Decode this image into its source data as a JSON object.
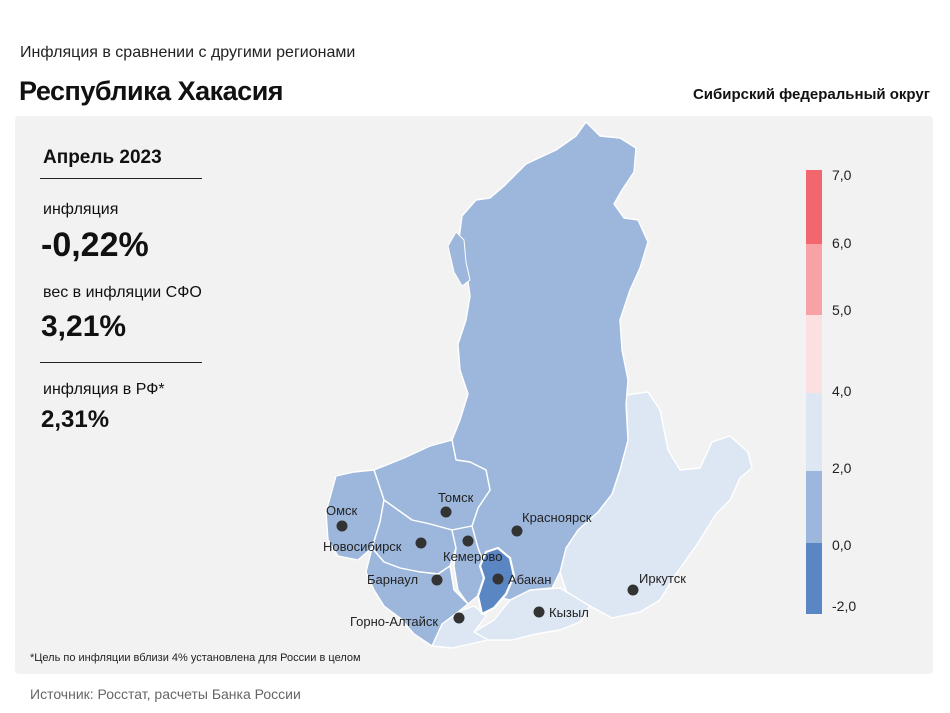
{
  "header": {
    "subtitle": "Инфляция  в сравнении  с другими  регионами",
    "title": "Республика Хакасия",
    "district": "Сибирский федеральный округ"
  },
  "stats": {
    "period": "Апрель 2023",
    "inflation_label": "инфляция",
    "inflation_value": "-0,22%",
    "weight_label": "вес в инфляции  СФО",
    "weight_value": "3,21%",
    "rf_label": "инфляция  в РФ*",
    "rf_value": "2,31%"
  },
  "cities": {
    "omsk": "Омск",
    "tomsk": "Томск",
    "krasnoyarsk": "Красноярск",
    "novosibirsk": "Новосибирск",
    "kemerovo": "Кемерово",
    "barnaul": "Барнаул",
    "abakan": "Абакан",
    "irkutsk": "Иркутск",
    "gorno_altaysk": "Горно-Алтайск",
    "kyzyl": "Кызыл"
  },
  "legend": {
    "ticks": [
      "7,0",
      "6,0",
      "5,0",
      "4,0",
      "2,0",
      "0,0",
      "-2,0"
    ],
    "colors": [
      "#f2676d",
      "#f7a3a6",
      "#fbdfe1",
      "#dde7f3",
      "#9db7dc",
      "#5b86c4"
    ]
  },
  "footnote": "*Цель по инфляции вблизи 4% установлена для России в целом",
  "source": "Источник: Росстат, расчеты Банка России",
  "colors": {
    "region_mid": "#9db7dc",
    "region_light": "#dde7f3",
    "region_selected": "#5b86c4",
    "panel_bg": "#f2f2f2"
  }
}
